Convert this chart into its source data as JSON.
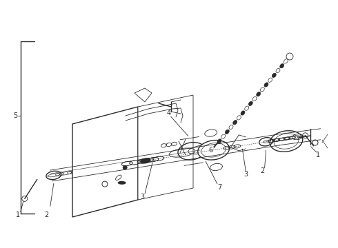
{
  "bg_color": "#ffffff",
  "fg_color": "#2a2a2a",
  "figsize": [
    4.9,
    3.6
  ],
  "dpi": 100,
  "lw_thin": 0.6,
  "lw_med": 1.0,
  "lw_thick": 1.4
}
